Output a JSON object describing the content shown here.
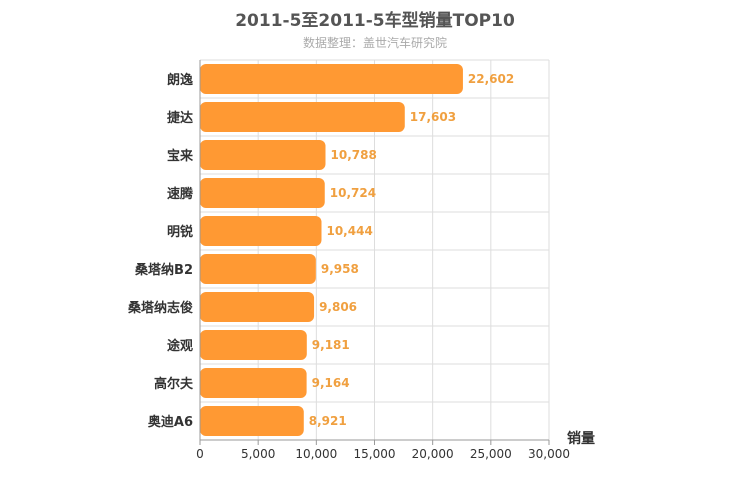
{
  "chart_data": {
    "type": "bar",
    "orientation": "horizontal",
    "title": "2011-5至2011-5车型销量TOP10",
    "subtitle": "数据整理：盖世汽车研究院",
    "categories": [
      "朗逸",
      "捷达",
      "宝来",
      "速腾",
      "明锐",
      "桑塔纳B2",
      "桑塔纳志俊",
      "途观",
      "高尔夫",
      "奥迪A6"
    ],
    "values": [
      22602,
      17603,
      10788,
      10724,
      10444,
      9958,
      9806,
      9181,
      9164,
      8921
    ],
    "value_labels": [
      "22,602",
      "17,603",
      "10,788",
      "10,724",
      "10,444",
      "9,958",
      "9,806",
      "9,181",
      "9,164",
      "8,921"
    ],
    "xlabel": "销量",
    "ylabel": "",
    "xlim": [
      0,
      30000
    ],
    "xticks": [
      0,
      5000,
      10000,
      15000,
      20000,
      25000,
      30000
    ],
    "xtick_labels": [
      "0",
      "5,000",
      "10,000",
      "15,000",
      "20,000",
      "25,000",
      "30,000"
    ],
    "grid": true,
    "bar_color": "#ff9933",
    "value_label_color": "#f0a040"
  }
}
